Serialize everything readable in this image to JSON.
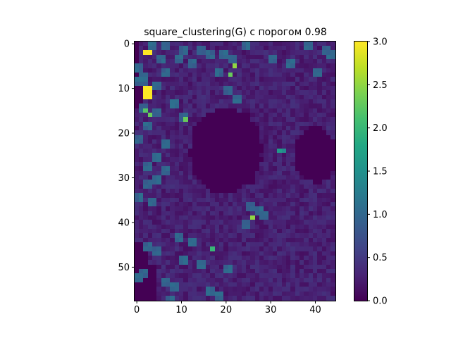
{
  "chart_data": {
    "type": "heatmap",
    "title": "square_clustering(G) с порогом 0.98",
    "xlabel": "",
    "ylabel": "",
    "rows": 58,
    "cols": 45,
    "xlim": [
      -0.5,
      44.5
    ],
    "ylim": [
      57.5,
      -0.5
    ],
    "x_ticks": [
      0,
      10,
      20,
      30,
      40
    ],
    "y_ticks": [
      0,
      10,
      20,
      30,
      40,
      50
    ],
    "colorbar": {
      "min": 0.0,
      "max": 3.0,
      "ticks": [
        0.0,
        0.5,
        1.0,
        1.5,
        2.0,
        2.5,
        3.0
      ],
      "colormap": "viridis"
    },
    "value_summary": {
      "background_range": [
        0.1,
        0.5
      ],
      "dark_zero_regions": [
        {
          "rows": [
            14,
            34
          ],
          "cols": [
            12,
            28
          ],
          "value": 0.0
        },
        {
          "rows": [
            19,
            31
          ],
          "cols": [
            35,
            44
          ],
          "value": 0.0
        },
        {
          "rows": [
            45,
            57
          ],
          "cols": [
            0,
            4
          ],
          "value": 0.0
        },
        {
          "rows": [
            7,
            17
          ],
          "cols": [
            0,
            2
          ],
          "value": 0.0
        }
      ],
      "teal_patches_value": 1.0,
      "hot_cells": [
        {
          "row": 2,
          "col": 2,
          "value": 3.0
        },
        {
          "row": 2,
          "col": 3,
          "value": 3.0
        },
        {
          "row": 10,
          "col": 2,
          "value": 3.0
        },
        {
          "row": 10,
          "col": 3,
          "value": 3.0
        },
        {
          "row": 11,
          "col": 2,
          "value": 3.0
        },
        {
          "row": 11,
          "col": 3,
          "value": 3.0
        },
        {
          "row": 12,
          "col": 2,
          "value": 3.0
        },
        {
          "row": 12,
          "col": 3,
          "value": 3.0
        },
        {
          "row": 5,
          "col": 22,
          "value": 2.5
        },
        {
          "row": 7,
          "col": 21,
          "value": 2.3
        },
        {
          "row": 15,
          "col": 2,
          "value": 2.2
        },
        {
          "row": 16,
          "col": 3,
          "value": 2.3
        },
        {
          "row": 17,
          "col": 11,
          "value": 2.3
        },
        {
          "row": 39,
          "col": 26,
          "value": 2.5
        },
        {
          "row": 46,
          "col": 17,
          "value": 2.0
        },
        {
          "row": 24,
          "col": 32,
          "value": 1.6
        },
        {
          "row": 24,
          "col": 33,
          "value": 1.4
        }
      ]
    }
  }
}
